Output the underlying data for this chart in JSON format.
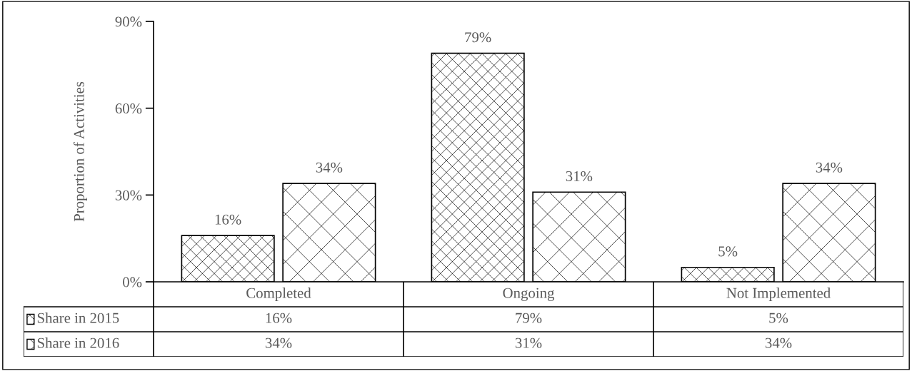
{
  "chart_data": {
    "type": "bar",
    "ylabel": "Proportion of Activities",
    "categories": [
      "Completed",
      "Ongoing",
      "Not Implemented"
    ],
    "series": [
      {
        "name": "Share in 2015",
        "color": "#000000",
        "values": [
          16,
          79,
          5
        ],
        "value_labels": [
          "16%",
          "79%",
          "5%"
        ]
      },
      {
        "name": "Share in 2016",
        "color": "#000000",
        "values": [
          34,
          31,
          34
        ],
        "value_labels": [
          "34%",
          "31%",
          "34%"
        ]
      }
    ],
    "ylim": [
      0,
      90
    ],
    "yticks": [
      {
        "value": 0,
        "label": "0%"
      },
      {
        "value": 30,
        "label": "30%"
      },
      {
        "value": 60,
        "label": "60%"
      },
      {
        "value": 90,
        "label": "90%"
      }
    ],
    "grid": false,
    "legend": "bottom"
  }
}
